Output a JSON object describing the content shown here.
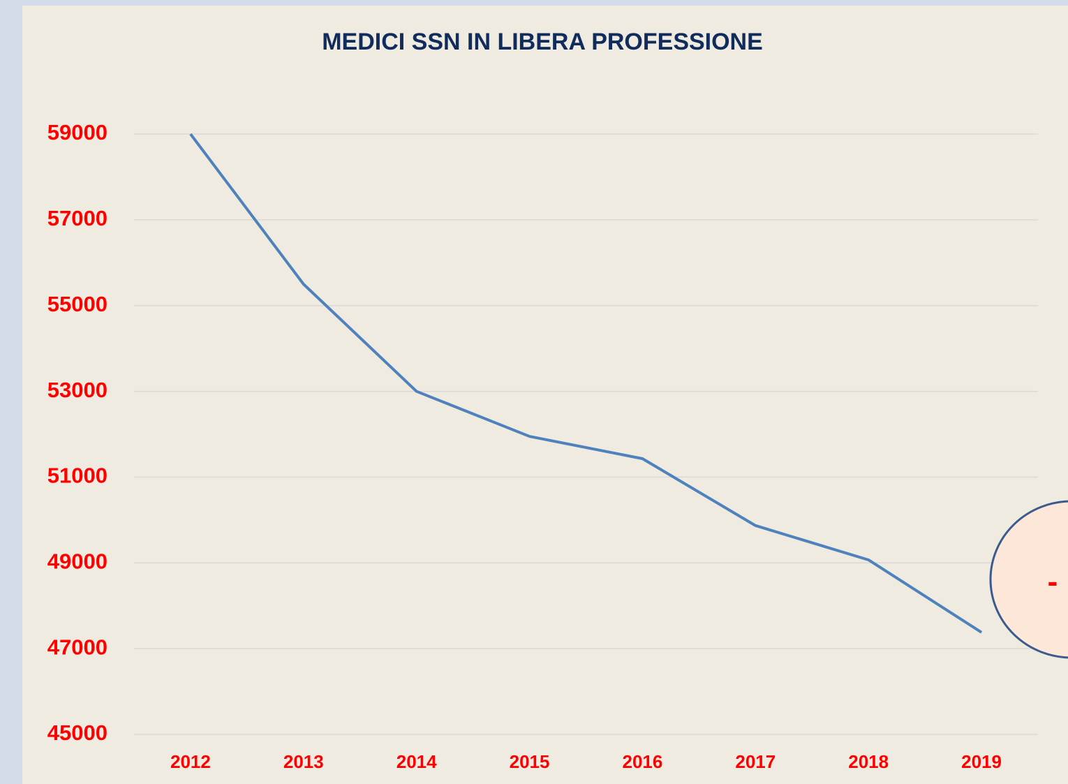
{
  "chart_data": {
    "type": "line",
    "title": "MEDICI SSN IN LIBERA PROFESSIONE",
    "categories": [
      "2012",
      "2013",
      "2014",
      "2015",
      "2016",
      "2017",
      "2018",
      "2019"
    ],
    "series": [
      {
        "name": "Medici SSN in libera professione",
        "color": "#4f81bd",
        "values": [
          59000,
          55500,
          53000,
          51950,
          51430,
          49870,
          49070,
          47380
        ]
      }
    ],
    "ylim": [
      45000,
      59000
    ],
    "yticks": [
      45000,
      47000,
      49000,
      51000,
      53000,
      55000,
      57000,
      59000
    ],
    "grid": true,
    "annotation": "-"
  }
}
